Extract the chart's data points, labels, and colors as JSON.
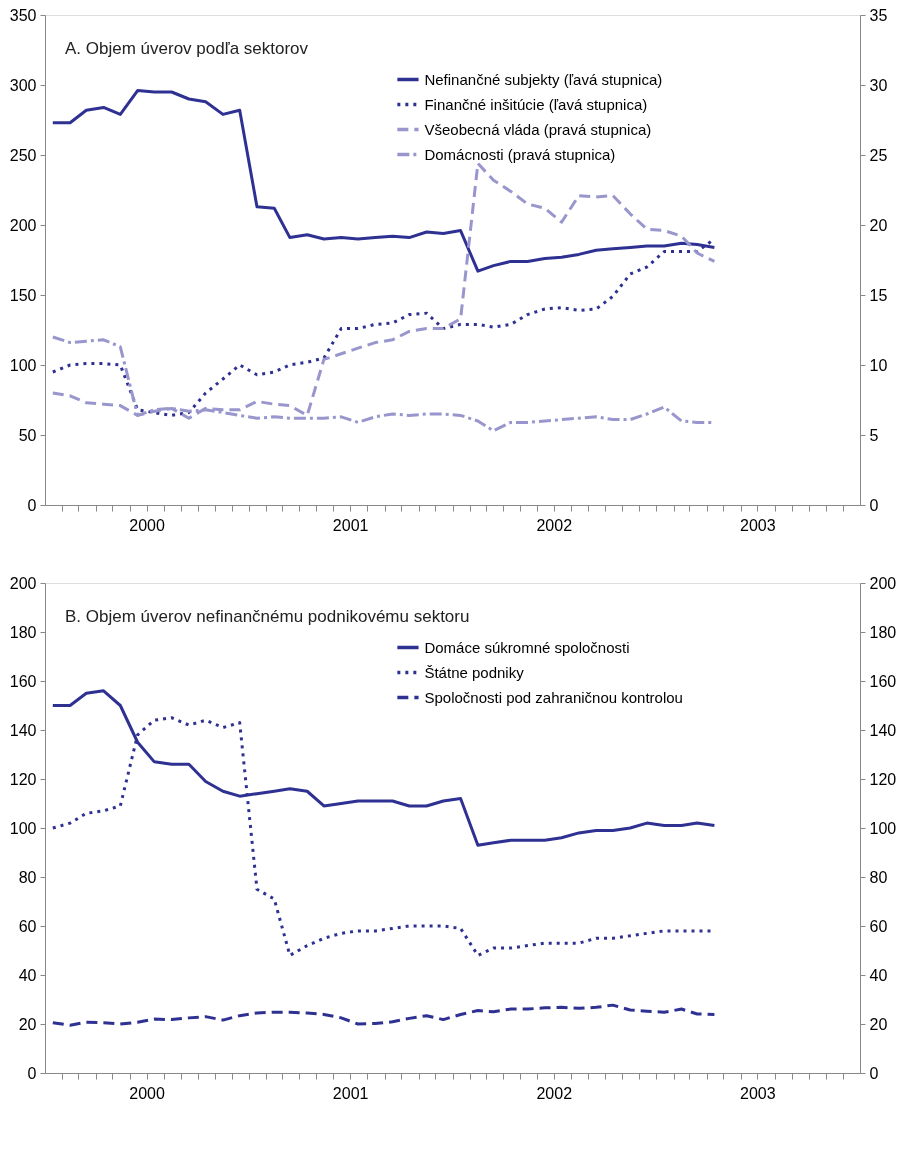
{
  "chart_data": [
    {
      "type": "line",
      "title": "A.  Objem úverov podľa sektorov",
      "x": [
        "2000-01-15",
        "2000-02-15",
        "2000-03-15",
        "2000-04-15",
        "2000-05-15",
        "2000-06-15",
        "2000-07-15",
        "2000-08-15",
        "2000-09-15",
        "2000-10-15",
        "2000-11-15",
        "2000-12-15",
        "2001-01-15",
        "2001-02-15",
        "2001-03-15",
        "2001-04-15",
        "2001-05-15",
        "2001-06-15",
        "2001-07-15",
        "2001-08-15",
        "2001-09-15",
        "2001-10-15",
        "2001-11-15",
        "2001-12-15",
        "2002-01-15",
        "2002-02-15",
        "2002-03-15",
        "2002-04-15",
        "2002-05-15",
        "2002-06-15",
        "2002-07-15",
        "2002-08-15",
        "2002-09-15",
        "2002-10-15",
        "2002-11-15",
        "2002-12-15",
        "2003-01-15",
        "2003-02-15",
        "2003-03-15",
        "2003-04-15"
      ],
      "series": [
        {
          "name": "Nefinančné subjekty (ľavá stupnica)",
          "color": "#2e3192",
          "line_style": "solid",
          "values": [
            273,
            273,
            282,
            284,
            279,
            296,
            295,
            295,
            290,
            288,
            279,
            282,
            213,
            212,
            191,
            193,
            190,
            191,
            190,
            191,
            192,
            191,
            195,
            194,
            196,
            167,
            171,
            174,
            174,
            176,
            177,
            179,
            182,
            183,
            184,
            185,
            185,
            187,
            186,
            184
          ]
        },
        {
          "name": "Finančné inšitúcie (ľavá stupnica)",
          "color": "#2e3192",
          "line_style": "dotted",
          "values": [
            95,
            100,
            101,
            101,
            100,
            68,
            66,
            64,
            66,
            80,
            90,
            100,
            93,
            95,
            100,
            102,
            105,
            126,
            126,
            129,
            130,
            136,
            137,
            126,
            129,
            129,
            127,
            129,
            136,
            140,
            141,
            139,
            140,
            149,
            165,
            170,
            181,
            181,
            181,
            190
          ]
        },
        {
          "name": "Všeobecná vláda (pravá stupnica)",
          "color": "#9896cc",
          "line_style": "dashed",
          "axis": "y2",
          "values": [
            8.0,
            7.8,
            7.3,
            7.2,
            7.1,
            6.4,
            6.7,
            6.9,
            6.2,
            6.9,
            6.8,
            6.8,
            7.4,
            7.2,
            7.1,
            6.4,
            10.4,
            10.8,
            11.2,
            11.6,
            11.8,
            12.4,
            12.6,
            12.6,
            13.3,
            24.4,
            23.2,
            22.4,
            21.5,
            21.2,
            20.2,
            22.1,
            22.0,
            22.1,
            20.8,
            19.7,
            19.6,
            19.2,
            18.0,
            17.4
          ]
        },
        {
          "name": "Domácnosti (pravá stupnica)",
          "color": "#9896cc",
          "line_style": "dashdot",
          "axis": "y2",
          "values": [
            12.0,
            11.6,
            11.7,
            11.8,
            11.3,
            6.4,
            6.8,
            6.9,
            6.7,
            6.8,
            6.6,
            6.4,
            6.2,
            6.3,
            6.2,
            6.2,
            6.2,
            6.3,
            5.9,
            6.3,
            6.5,
            6.4,
            6.5,
            6.5,
            6.4,
            6.0,
            5.3,
            5.9,
            5.9,
            6.0,
            6.1,
            6.2,
            6.3,
            6.1,
            6.1,
            6.5,
            7.0,
            6.0,
            5.9,
            5.9
          ]
        }
      ],
      "xlim": [
        "2000-01-01",
        "2004-01-01"
      ],
      "xticks": [
        {
          "value": "2000-02-01",
          "label": null
        },
        {
          "value": "2000-03-01",
          "label": null
        },
        {
          "value": "2000-04-01",
          "label": null
        },
        {
          "value": "2000-05-01",
          "label": null
        },
        {
          "value": "2000-06-01",
          "label": null
        },
        {
          "value": "2000-07-01",
          "label": "2000"
        },
        {
          "value": "2000-08-01",
          "label": null
        },
        {
          "value": "2000-09-01",
          "label": null
        },
        {
          "value": "2000-10-01",
          "label": null
        },
        {
          "value": "2000-11-01",
          "label": null
        },
        {
          "value": "2000-12-01",
          "label": null
        },
        {
          "value": "2001-01-01",
          "label": null
        },
        {
          "value": "2001-02-01",
          "label": null
        },
        {
          "value": "2001-03-01",
          "label": null
        },
        {
          "value": "2001-04-01",
          "label": null
        },
        {
          "value": "2001-05-01",
          "label": null
        },
        {
          "value": "2001-06-01",
          "label": null
        },
        {
          "value": "2001-07-01",
          "label": "2001"
        },
        {
          "value": "2001-08-01",
          "label": null
        },
        {
          "value": "2001-09-01",
          "label": null
        },
        {
          "value": "2001-10-01",
          "label": null
        },
        {
          "value": "2001-11-01",
          "label": null
        },
        {
          "value": "2001-12-01",
          "label": null
        },
        {
          "value": "2002-01-01",
          "label": null
        },
        {
          "value": "2002-02-01",
          "label": null
        },
        {
          "value": "2002-03-01",
          "label": null
        },
        {
          "value": "2002-04-01",
          "label": null
        },
        {
          "value": "2002-05-01",
          "label": null
        },
        {
          "value": "2002-06-01",
          "label": null
        },
        {
          "value": "2002-07-01",
          "label": "2002"
        },
        {
          "value": "2002-08-01",
          "label": null
        },
        {
          "value": "2002-09-01",
          "label": null
        },
        {
          "value": "2002-10-01",
          "label": null
        },
        {
          "value": "2002-11-01",
          "label": null
        },
        {
          "value": "2002-12-01",
          "label": null
        },
        {
          "value": "2003-01-01",
          "label": null
        },
        {
          "value": "2003-02-01",
          "label": null
        },
        {
          "value": "2003-03-01",
          "label": null
        },
        {
          "value": "2003-04-01",
          "label": null
        },
        {
          "value": "2003-05-01",
          "label": null
        },
        {
          "value": "2003-06-01",
          "label": null
        },
        {
          "value": "2003-07-01",
          "label": "2003"
        },
        {
          "value": "2003-08-01",
          "label": null
        },
        {
          "value": "2003-09-01",
          "label": null
        },
        {
          "value": "2003-10-01",
          "label": null
        },
        {
          "value": "2003-11-01",
          "label": null
        },
        {
          "value": "2003-12-01",
          "label": null
        }
      ],
      "ylim": [
        0,
        350
      ],
      "yticks": [
        0,
        50,
        100,
        150,
        200,
        250,
        300,
        350
      ],
      "y2lim": [
        0,
        35
      ],
      "y2ticks": [
        0,
        5,
        10,
        15,
        20,
        25,
        30,
        35
      ],
      "grid": false,
      "legend": "top right",
      "marker": "none"
    },
    {
      "type": "line",
      "title": "B.  Objem úverov nefinančnému podnikovému sektoru",
      "x": [
        "2000-01-15",
        "2000-02-15",
        "2000-03-15",
        "2000-04-15",
        "2000-05-15",
        "2000-06-15",
        "2000-07-15",
        "2000-08-15",
        "2000-09-15",
        "2000-10-15",
        "2000-11-15",
        "2000-12-15",
        "2001-01-15",
        "2001-02-15",
        "2001-03-15",
        "2001-04-15",
        "2001-05-15",
        "2001-06-15",
        "2001-07-15",
        "2001-08-15",
        "2001-09-15",
        "2001-10-15",
        "2001-11-15",
        "2001-12-15",
        "2002-01-15",
        "2002-02-15",
        "2002-03-15",
        "2002-04-15",
        "2002-05-15",
        "2002-06-15",
        "2002-07-15",
        "2002-08-15",
        "2002-09-15",
        "2002-10-15",
        "2002-11-15",
        "2002-12-15",
        "2003-01-15",
        "2003-02-15",
        "2003-03-15",
        "2003-04-15"
      ],
      "series": [
        {
          "name": "Domáce súkromné spoločnosti",
          "color": "#2e3192",
          "line_style": "solid",
          "values": [
            150,
            150,
            155,
            156,
            150,
            135,
            127,
            126,
            126,
            119,
            115,
            113,
            114,
            115,
            116,
            115,
            109,
            110,
            111,
            111,
            111,
            109,
            109,
            111,
            112,
            93,
            94,
            95,
            95,
            95,
            96,
            98,
            99,
            99,
            100,
            102,
            101,
            101,
            102,
            101
          ]
        },
        {
          "name": "Štátne podniky",
          "color": "#2e3192",
          "line_style": "dotted",
          "values": [
            100,
            102,
            106,
            107,
            109,
            138,
            144,
            145,
            142,
            144,
            141,
            143,
            75,
            71,
            48,
            52,
            55,
            57,
            58,
            58,
            59,
            60,
            60,
            60,
            59,
            48,
            51,
            51,
            52,
            53,
            53,
            53,
            55,
            55,
            56,
            57,
            58,
            58,
            58,
            58
          ]
        },
        {
          "name": "Spoločnosti pod zahraničnou kontrolou",
          "color": "#2e3192",
          "line_style": "dashed",
          "values": [
            20.5,
            19.5,
            20.7,
            20.5,
            20,
            20.7,
            22,
            21.8,
            22.5,
            23,
            21.6,
            23.4,
            24.5,
            24.8,
            24.8,
            24.5,
            23.9,
            22.5,
            20,
            20.2,
            20.9,
            22.3,
            23.4,
            21.8,
            23.9,
            25.5,
            25,
            26.1,
            26.1,
            26.6,
            26.8,
            26.4,
            26.8,
            27.7,
            25.7,
            25.2,
            24.8,
            26.1,
            24.1,
            23.9
          ]
        }
      ],
      "xlim": [
        "2000-01-01",
        "2004-01-01"
      ],
      "xticks": [
        {
          "value": "2000-02-01",
          "label": null
        },
        {
          "value": "2000-03-01",
          "label": null
        },
        {
          "value": "2000-04-01",
          "label": null
        },
        {
          "value": "2000-05-01",
          "label": null
        },
        {
          "value": "2000-06-01",
          "label": null
        },
        {
          "value": "2000-07-01",
          "label": "2000"
        },
        {
          "value": "2000-08-01",
          "label": null
        },
        {
          "value": "2000-09-01",
          "label": null
        },
        {
          "value": "2000-10-01",
          "label": null
        },
        {
          "value": "2000-11-01",
          "label": null
        },
        {
          "value": "2000-12-01",
          "label": null
        },
        {
          "value": "2001-01-01",
          "label": null
        },
        {
          "value": "2001-02-01",
          "label": null
        },
        {
          "value": "2001-03-01",
          "label": null
        },
        {
          "value": "2001-04-01",
          "label": null
        },
        {
          "value": "2001-05-01",
          "label": null
        },
        {
          "value": "2001-06-01",
          "label": null
        },
        {
          "value": "2001-07-01",
          "label": "2001"
        },
        {
          "value": "2001-08-01",
          "label": null
        },
        {
          "value": "2001-09-01",
          "label": null
        },
        {
          "value": "2001-10-01",
          "label": null
        },
        {
          "value": "2001-11-01",
          "label": null
        },
        {
          "value": "2001-12-01",
          "label": null
        },
        {
          "value": "2002-01-01",
          "label": null
        },
        {
          "value": "2002-02-01",
          "label": null
        },
        {
          "value": "2002-03-01",
          "label": null
        },
        {
          "value": "2002-04-01",
          "label": null
        },
        {
          "value": "2002-05-01",
          "label": null
        },
        {
          "value": "2002-06-01",
          "label": null
        },
        {
          "value": "2002-07-01",
          "label": "2002"
        },
        {
          "value": "2002-08-01",
          "label": null
        },
        {
          "value": "2002-09-01",
          "label": null
        },
        {
          "value": "2002-10-01",
          "label": null
        },
        {
          "value": "2002-11-01",
          "label": null
        },
        {
          "value": "2002-12-01",
          "label": null
        },
        {
          "value": "2003-01-01",
          "label": null
        },
        {
          "value": "2003-02-01",
          "label": null
        },
        {
          "value": "2003-03-01",
          "label": null
        },
        {
          "value": "2003-04-01",
          "label": null
        },
        {
          "value": "2003-05-01",
          "label": null
        },
        {
          "value": "2003-06-01",
          "label": null
        },
        {
          "value": "2003-07-01",
          "label": "2003"
        },
        {
          "value": "2003-08-01",
          "label": null
        },
        {
          "value": "2003-09-01",
          "label": null
        },
        {
          "value": "2003-10-01",
          "label": null
        },
        {
          "value": "2003-11-01",
          "label": null
        },
        {
          "value": "2003-12-01",
          "label": null
        }
      ],
      "ylim": [
        0,
        200
      ],
      "yticks": [
        0,
        20,
        40,
        60,
        80,
        100,
        120,
        140,
        160,
        180,
        200
      ],
      "y2lim": [
        0,
        200
      ],
      "y2ticks": [
        0,
        20,
        40,
        60,
        80,
        100,
        120,
        140,
        160,
        180,
        200
      ],
      "grid": false,
      "legend": "top right",
      "marker": "none"
    }
  ]
}
